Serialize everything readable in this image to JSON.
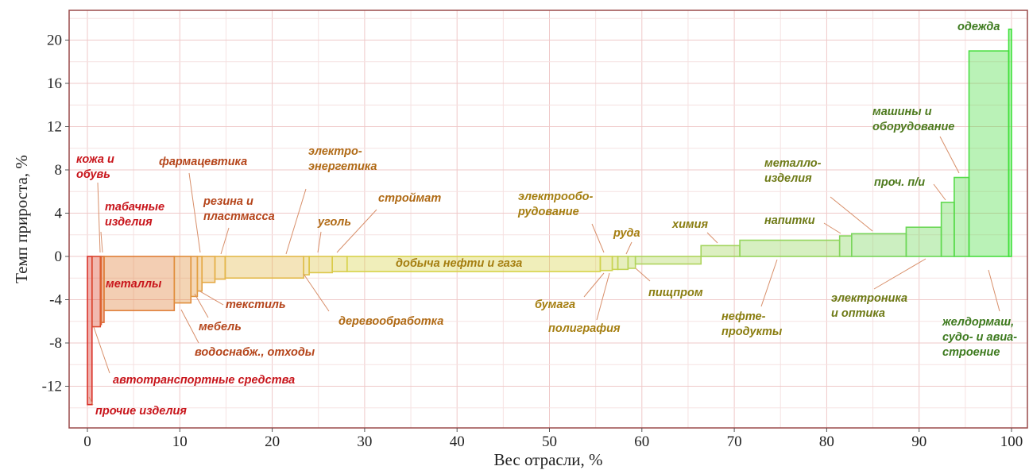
{
  "chart_data": {
    "type": "bar",
    "subtype": "variable-width (Marimekko) bar chart, segments sorted by growth",
    "xlabel": "Вес отрасли, %",
    "ylabel": "Темп прироста, %",
    "xlim": [
      0,
      100
    ],
    "ylim": [
      -14.5,
      22.5
    ],
    "x_ticks": [
      "0",
      "10",
      "20",
      "30",
      "40",
      "50",
      "60",
      "70",
      "80",
      "90",
      "100"
    ],
    "y_ticks": [
      "-12",
      "-8",
      "-4",
      "0",
      "4",
      "8",
      "12",
      "16",
      "20"
    ],
    "grid": true,
    "color_scale": [
      "#d9342b",
      "#e08a3a",
      "#e5b54a",
      "#d7d24a",
      "#b4d45c",
      "#74d55c",
      "#3fe03a"
    ],
    "segments": [
      {
        "label": "прочие изделия",
        "x0": 0,
        "x1": 0.5,
        "value": -13.7
      },
      {
        "label": "автотранспортные средства",
        "x0": 0.5,
        "x1": 1.4,
        "value": -6.5
      },
      {
        "label": "кожа и обувь",
        "x0": 1.4,
        "x1": 1.5,
        "value": -6.3
      },
      {
        "label": "табачные изделия",
        "x0": 1.5,
        "x1": 1.8,
        "value": -6.1
      },
      {
        "label": "металлы",
        "x0": 1.8,
        "x1": 9.4,
        "value": -5.0
      },
      {
        "label": "водоснабж., отходы",
        "x0": 9.4,
        "x1": 11.2,
        "value": -4.3
      },
      {
        "label": "мебель",
        "x0": 11.2,
        "x1": 11.9,
        "value": -3.7
      },
      {
        "label": "текстиль",
        "x0": 11.9,
        "x1": 12.4,
        "value": -3.2
      },
      {
        "label": "фармацевтика",
        "x0": 12.4,
        "x1": 13.8,
        "value": -2.4
      },
      {
        "label": "резина и пластмасса",
        "x0": 13.8,
        "x1": 14.9,
        "value": -2.1
      },
      {
        "label": "",
        "x0": 14.9,
        "x1": 23.4,
        "value": -2.0
      },
      {
        "label": "деревообработка",
        "x0": 23.4,
        "x1": 24.0,
        "value": -1.7
      },
      {
        "label": "уголь",
        "x0": 24.0,
        "x1": 26.5,
        "value": -1.5
      },
      {
        "label": "строймат",
        "x0": 26.5,
        "x1": 28.1,
        "value": -1.4
      },
      {
        "label": "добыча нефти и газа",
        "x0": 28.1,
        "x1": 55.5,
        "value": -1.4
      },
      {
        "label": "бумага",
        "x0": 55.5,
        "x1": 56.8,
        "value": -1.3
      },
      {
        "label": "полиграфия",
        "x0": 56.8,
        "x1": 57.4,
        "value": -1.2
      },
      {
        "label": "руда",
        "x0": 57.4,
        "x1": 58.5,
        "value": -1.2
      },
      {
        "label": "электрооборудование",
        "x0": 58.5,
        "x1": 59.3,
        "value": -1.1
      },
      {
        "label": "пищпром",
        "x0": 59.3,
        "x1": 66.4,
        "value": -0.7
      },
      {
        "label": "химия",
        "x0": 66.4,
        "x1": 70.6,
        "value": 1.0
      },
      {
        "label": "нефтепродукты",
        "x0": 70.6,
        "x1": 81.4,
        "value": 1.5
      },
      {
        "label": "напитки",
        "x0": 81.4,
        "x1": 82.7,
        "value": 1.9
      },
      {
        "label": "металлоизделия",
        "x0": 82.7,
        "x1": 88.6,
        "value": 2.1
      },
      {
        "label": "электроника и оптика",
        "x0": 88.6,
        "x1": 92.4,
        "value": 2.7
      },
      {
        "label": "проч. п/и",
        "x0": 92.4,
        "x1": 93.8,
        "value": 5.0
      },
      {
        "label": "машины и оборудование",
        "x0": 93.8,
        "x1": 95.4,
        "value": 7.3
      },
      {
        "label": "желдормаш, судо- и авиастроение",
        "x0": 95.4,
        "x1": 99.7,
        "value": 19.0
      },
      {
        "label": "одежда",
        "x0": 99.7,
        "x1": 100,
        "value": 21.0
      }
    ],
    "annotations": [
      {
        "lines": [
          "прочие изделия"
        ],
        "color": "#c8151b"
      },
      {
        "lines": [
          "автотранспортные средства"
        ],
        "color": "#c8151b"
      },
      {
        "lines": [
          "кожа и",
          "обувь"
        ],
        "color": "#c8151b"
      },
      {
        "lines": [
          "табачные",
          "изделия"
        ],
        "color": "#c8151b"
      },
      {
        "lines": [
          "металлы"
        ],
        "color": "#c8151b"
      },
      {
        "lines": [
          "водоснабж., отходы"
        ],
        "color": "#b5451b"
      },
      {
        "lines": [
          "мебель"
        ],
        "color": "#b5451b"
      },
      {
        "lines": [
          "текстиль"
        ],
        "color": "#b5451b"
      },
      {
        "lines": [
          "фармацевтика"
        ],
        "color": "#b5451b"
      },
      {
        "lines": [
          "резина и",
          "пластмасса"
        ],
        "color": "#b5451b"
      },
      {
        "lines": [
          "электро-",
          "энергетика"
        ],
        "color": "#b06a15"
      },
      {
        "lines": [
          "деревообработка"
        ],
        "color": "#b06a15"
      },
      {
        "lines": [
          "уголь"
        ],
        "color": "#b06a15"
      },
      {
        "lines": [
          "строймат"
        ],
        "color": "#b06a15"
      },
      {
        "lines": [
          "добыча нефти и газа"
        ],
        "color": "#a57e10"
      },
      {
        "lines": [
          "электрообо-",
          "рудование"
        ],
        "color": "#a57e10"
      },
      {
        "lines": [
          "бумага"
        ],
        "color": "#a57e10"
      },
      {
        "lines": [
          "полиграфия"
        ],
        "color": "#a57e10"
      },
      {
        "lines": [
          "руда"
        ],
        "color": "#a57e10"
      },
      {
        "lines": [
          "пищпром"
        ],
        "color": "#8a7d10"
      },
      {
        "lines": [
          "химия"
        ],
        "color": "#8a7d10"
      },
      {
        "lines": [
          "нефте-",
          "продукты"
        ],
        "color": "#8a7d10"
      },
      {
        "lines": [
          "напитки"
        ],
        "color": "#6e7a16"
      },
      {
        "lines": [
          "металло-",
          "изделия"
        ],
        "color": "#6e7a16"
      },
      {
        "lines": [
          "электроника",
          "и оптика"
        ],
        "color": "#6e7a16"
      },
      {
        "lines": [
          "проч. п/и"
        ],
        "color": "#4e7a1e"
      },
      {
        "lines": [
          "машины и",
          "оборудование"
        ],
        "color": "#4e7a1e"
      },
      {
        "lines": [
          "желдормаш,",
          "судо- и авиа-",
          "строение"
        ],
        "color": "#3d7a1e"
      },
      {
        "lines": [
          "одежда"
        ],
        "color": "#3d7a1e"
      }
    ]
  }
}
